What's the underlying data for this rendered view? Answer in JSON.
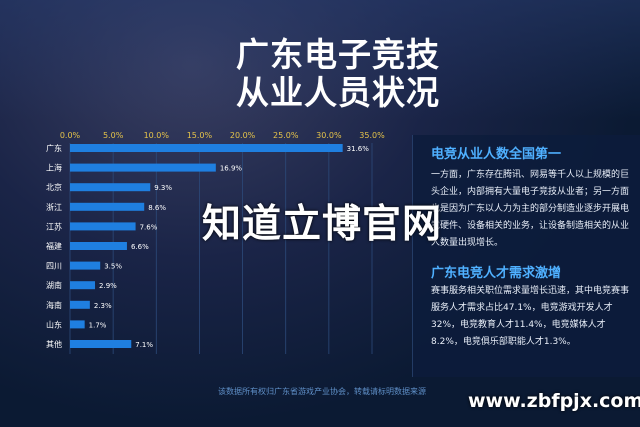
{
  "title": {
    "line1": "广东电子竞技",
    "line2": "从业人员状况"
  },
  "chart_data": {
    "type": "bar",
    "orientation": "horizontal",
    "categories": [
      "广东",
      "上海",
      "北京",
      "浙江",
      "江苏",
      "福建",
      "四川",
      "湖南",
      "海南",
      "山东",
      "其他"
    ],
    "values": [
      31.6,
      16.9,
      9.3,
      8.6,
      7.6,
      6.6,
      3.5,
      2.9,
      2.3,
      1.7,
      7.1
    ],
    "value_labels": [
      "31.6%",
      "16.9%",
      "9.3%",
      "8.6%",
      "7.6%",
      "6.6%",
      "3.5%",
      "2.9%",
      "2.3%",
      "1.7%",
      "7.1%"
    ],
    "xticks": [
      "0.0%",
      "5.0%",
      "10.0%",
      "15.0%",
      "20.0%",
      "25.0%",
      "30.0%",
      "35.0%"
    ],
    "xlim": [
      0,
      35
    ],
    "grid": true,
    "color": "#1f7fe0"
  },
  "panel": {
    "heading1": "电竞从业人数全国第一",
    "para1": "一方面，广东存在腾讯、网易等千人以上规模的巨头企业，内部拥有大量电子竞技从业者；另一方面也是因为广东以人力为主的部分制造业逐步开展电竞硬件、设备相关的业务，让设备制造相关的从业人数量出现增长。",
    "heading2": "广东电竞人才需求激增",
    "para2": "赛事服务相关职位需求量增长迅速，其中电竞赛事服务人才需求占比47.1%，电竞游戏开发人才32%，电竞教育人才11.4%，电竞媒体人才8.2%，电竞俱乐部职能人才1.3%。"
  },
  "source": "该数据所有权归广东省游戏产业协会，转载请标明数据来源",
  "watermark": "知道立博官网",
  "site": "www.zbfpjx.com"
}
